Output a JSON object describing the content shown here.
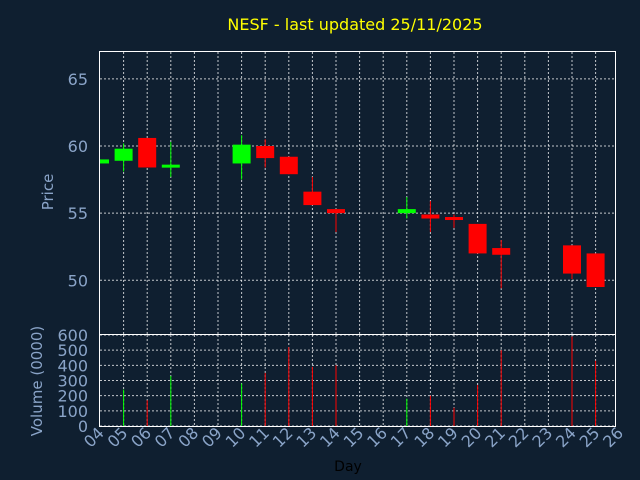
{
  "chart_data": {
    "type": "candlestick",
    "title": "NESF - last updated 25/11/2025",
    "xlabel": "Day",
    "price_panel": {
      "ylabel": "Price",
      "ylim": [
        46,
        67
      ],
      "yticks": [
        "50",
        "55",
        "60",
        "65"
      ],
      "grid": true
    },
    "volume_panel": {
      "ylabel": "Volume (0000)",
      "ylim": [
        0,
        600
      ],
      "yticks": [
        "0",
        "100",
        "200",
        "300",
        "400",
        "500",
        "600"
      ],
      "grid": true
    },
    "x_tick_labels": [
      "04",
      "05",
      "06",
      "07",
      "08",
      "09",
      "10",
      "11",
      "12",
      "13",
      "14",
      "15",
      "16",
      "17",
      "18",
      "19",
      "20",
      "21",
      "22",
      "23",
      "24",
      "25",
      "26"
    ],
    "colors": {
      "up": "#00ff00",
      "down": "#ff0000",
      "background": "#0f1f30",
      "title": "#ffff00",
      "axis_text": "#8aa4c8",
      "grid": "#ffffff"
    },
    "candles": [
      {
        "day": "04",
        "open": 58.7,
        "high": 59.0,
        "low": 58.7,
        "close": 59.0,
        "volume": 0
      },
      {
        "day": "05",
        "open": 58.9,
        "high": 60.2,
        "low": 58.1,
        "close": 59.8,
        "volume": 240
      },
      {
        "day": "06",
        "open": 60.6,
        "high": 60.6,
        "low": 58.4,
        "close": 58.4,
        "volume": 170
      },
      {
        "day": "07",
        "open": 58.4,
        "high": 60.3,
        "low": 57.7,
        "close": 58.6,
        "volume": 330
      },
      {
        "day": "10",
        "open": 58.7,
        "high": 60.8,
        "low": 57.5,
        "close": 60.1,
        "volume": 280
      },
      {
        "day": "11",
        "open": 60.0,
        "high": 60.5,
        "low": 58.4,
        "close": 59.1,
        "volume": 350
      },
      {
        "day": "12",
        "open": 59.2,
        "high": 59.2,
        "low": 57.9,
        "close": 57.9,
        "volume": 520
      },
      {
        "day": "13",
        "open": 56.6,
        "high": 57.7,
        "low": 55.6,
        "close": 55.6,
        "volume": 390
      },
      {
        "day": "14",
        "open": 55.3,
        "high": 55.3,
        "low": 53.6,
        "close": 55.0,
        "volume": 400
      },
      {
        "day": "17",
        "open": 55.0,
        "high": 56.2,
        "low": 54.6,
        "close": 55.3,
        "volume": 180
      },
      {
        "day": "18",
        "open": 54.9,
        "high": 55.9,
        "low": 53.6,
        "close": 54.6,
        "volume": 200
      },
      {
        "day": "19",
        "open": 54.7,
        "high": 54.9,
        "low": 53.9,
        "close": 54.5,
        "volume": 120
      },
      {
        "day": "20",
        "open": 54.2,
        "high": 54.2,
        "low": 52.0,
        "close": 52.0,
        "volume": 270
      },
      {
        "day": "21",
        "open": 52.4,
        "high": 53.0,
        "low": 49.4,
        "close": 51.9,
        "volume": 500
      },
      {
        "day": "24",
        "open": 52.6,
        "high": 52.6,
        "low": 50.1,
        "close": 50.5,
        "volume": 590
      },
      {
        "day": "25",
        "open": 52.0,
        "high": 52.0,
        "low": 49.5,
        "close": 49.5,
        "volume": 430
      }
    ]
  }
}
